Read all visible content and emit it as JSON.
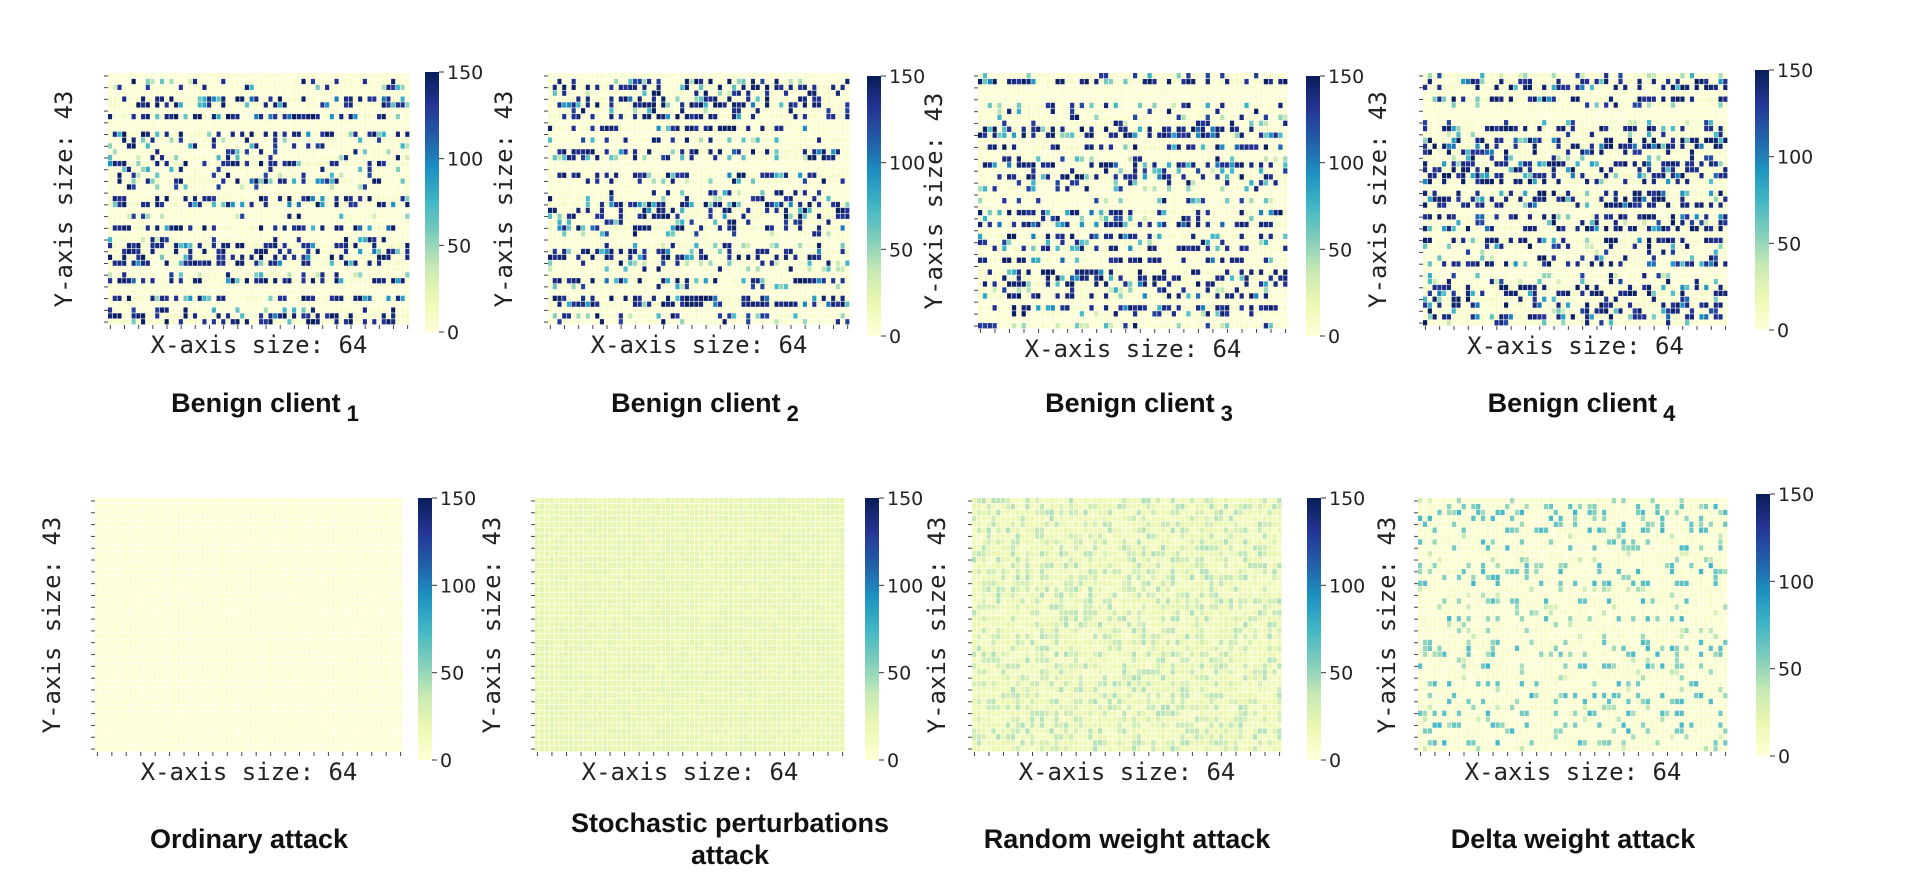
{
  "figure": {
    "colorbar": {
      "min": 0,
      "max": 150,
      "ticks": [
        "0",
        "50",
        "100",
        "150"
      ],
      "colormap": "YlGnBu"
    }
  },
  "chart_data": [
    {
      "type": "heatmap",
      "caption": "Benign client",
      "caption_sub": "1",
      "xlabel": "X-axis size: 64",
      "ylabel": "Y-axis size: 43",
      "cols": 64,
      "rows": 43,
      "vmin": 0,
      "vmax": 150,
      "pattern": "benign",
      "seed": 11
    },
    {
      "type": "heatmap",
      "caption": "Benign client",
      "caption_sub": "2",
      "xlabel": "X-axis size: 64",
      "ylabel": "Y-axis size: 43",
      "cols": 64,
      "rows": 43,
      "vmin": 0,
      "vmax": 150,
      "pattern": "benign",
      "seed": 23
    },
    {
      "type": "heatmap",
      "caption": "Benign client",
      "caption_sub": "3",
      "xlabel": "X-axis size: 64",
      "ylabel": "Y-axis size: 43",
      "cols": 64,
      "rows": 43,
      "vmin": 0,
      "vmax": 150,
      "pattern": "benign",
      "seed": 37
    },
    {
      "type": "heatmap",
      "caption": "Benign client",
      "caption_sub": "4",
      "xlabel": "X-axis size: 64",
      "ylabel": "Y-axis size: 43",
      "cols": 64,
      "rows": 43,
      "vmin": 0,
      "vmax": 150,
      "pattern": "benign",
      "seed": 41
    },
    {
      "type": "heatmap",
      "caption": "Ordinary attack",
      "caption_sub": "",
      "xlabel": "X-axis size: 64",
      "ylabel": "Y-axis size: 43",
      "cols": 64,
      "rows": 43,
      "vmin": 0,
      "vmax": 150,
      "pattern": "ordinary",
      "seed": 53
    },
    {
      "type": "heatmap",
      "caption": "Stochastic perturbations",
      "caption_line2": "attack",
      "caption_sub": "",
      "xlabel": "X-axis size: 64",
      "ylabel": "Y-axis size: 43",
      "cols": 64,
      "rows": 43,
      "vmin": 0,
      "vmax": 150,
      "pattern": "stochastic",
      "seed": 67
    },
    {
      "type": "heatmap",
      "caption": "Random weight attack",
      "caption_sub": "",
      "xlabel": "X-axis size: 64",
      "ylabel": "Y-axis size: 43",
      "cols": 64,
      "rows": 43,
      "vmin": 0,
      "vmax": 150,
      "pattern": "random",
      "seed": 79
    },
    {
      "type": "heatmap",
      "caption": "Delta weight attack",
      "caption_sub": "",
      "xlabel": "X-axis size: 64",
      "ylabel": "Y-axis size: 43",
      "cols": 64,
      "rows": 43,
      "vmin": 0,
      "vmax": 150,
      "pattern": "delta",
      "seed": 83
    }
  ]
}
